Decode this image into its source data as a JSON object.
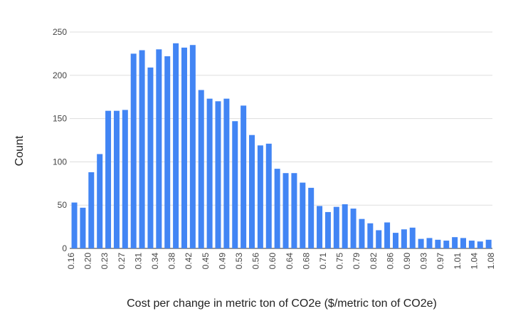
{
  "chart_data": {
    "type": "bar",
    "title": "",
    "xlabel": "Cost per change in metric ton of CO2e ($/metric ton of CO2e)",
    "ylabel": "Count",
    "ylim": [
      0,
      250
    ],
    "yticks": [
      0,
      50,
      100,
      150,
      200,
      250
    ],
    "grid": true,
    "legend": "none",
    "bar_color": "#4285f4",
    "categories": [
      "0.16",
      "0.18",
      "0.20",
      "0.22",
      "0.23",
      "0.25",
      "0.27",
      "0.29",
      "0.31",
      "0.33",
      "0.34",
      "0.36",
      "0.38",
      "0.40",
      "0.42",
      "0.44",
      "0.45",
      "0.47",
      "0.49",
      "0.51",
      "0.53",
      "0.54",
      "0.56",
      "0.58",
      "0.60",
      "0.62",
      "0.64",
      "0.66",
      "0.68",
      "0.69",
      "0.71",
      "0.73",
      "0.75",
      "0.77",
      "0.79",
      "0.80",
      "0.82",
      "0.84",
      "0.86",
      "0.88",
      "0.90",
      "0.91",
      "0.93",
      "0.95",
      "0.97",
      "0.99",
      "1.01",
      "1.02",
      "1.04",
      "1.06",
      "1.08"
    ],
    "tick_labels": [
      "0.16",
      "0.20",
      "0.23",
      "0.27",
      "0.31",
      "0.34",
      "0.38",
      "0.42",
      "0.45",
      "0.49",
      "0.53",
      "0.56",
      "0.60",
      "0.64",
      "0.68",
      "0.71",
      "0.75",
      "0.79",
      "0.82",
      "0.86",
      "0.90",
      "0.93",
      "0.97",
      "1.01",
      "1.04",
      "1.08"
    ],
    "values": [
      53,
      47,
      88,
      109,
      159,
      159,
      160,
      225,
      229,
      209,
      230,
      222,
      237,
      232,
      235,
      183,
      173,
      170,
      173,
      147,
      165,
      131,
      119,
      121,
      92,
      87,
      87,
      76,
      70,
      49,
      42,
      48,
      51,
      46,
      34,
      29,
      21,
      30,
      18,
      22,
      24,
      11,
      12,
      10,
      9,
      13,
      12,
      9,
      8,
      10,
      null
    ]
  }
}
